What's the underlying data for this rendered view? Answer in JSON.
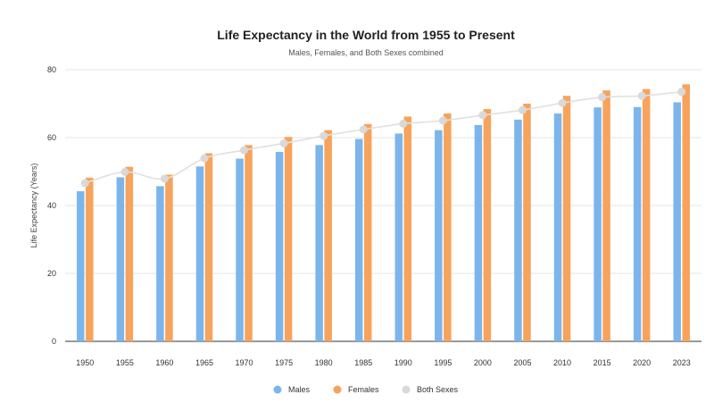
{
  "colors": {
    "males": "#7cb5ec",
    "females": "#f7a35c",
    "both": "#d9d9d9",
    "both_line": "#e0e0e0",
    "axis": "#333333",
    "grid": "#e6e6e6"
  },
  "chart_data": {
    "type": "bar",
    "title": "Life Expectancy in the World from 1955 to Present",
    "subtitle": "Males, Females, and Both Sexes combined",
    "xlabel": "",
    "ylabel": "Life Expectancy (Years)",
    "ylim": [
      0,
      80
    ],
    "yticks": [
      0,
      20,
      40,
      60,
      80
    ],
    "grid": true,
    "legend_position": "bottom",
    "categories": [
      "1950",
      "1955",
      "1960",
      "1965",
      "1970",
      "1975",
      "1980",
      "1985",
      "1990",
      "1995",
      "2000",
      "2005",
      "2010",
      "2015",
      "2020",
      "2023"
    ],
    "series": [
      {
        "name": "Males",
        "type": "bar",
        "values": [
          44.2,
          48.3,
          45.7,
          51.5,
          53.8,
          55.8,
          57.8,
          59.6,
          61.2,
          62.2,
          63.7,
          65.3,
          67.1,
          68.9,
          69.0,
          70.4
        ]
      },
      {
        "name": "Females",
        "type": "bar",
        "values": [
          48.2,
          51.4,
          49.1,
          55.4,
          57.8,
          60.2,
          62.2,
          64.0,
          66.2,
          67.1,
          68.4,
          70.0,
          72.3,
          73.9,
          74.3,
          75.7
        ]
      },
      {
        "name": "Both Sexes",
        "type": "line",
        "values": [
          46.6,
          49.9,
          47.9,
          53.9,
          56.3,
          58.3,
          60.5,
          62.4,
          64.1,
          65.0,
          66.6,
          68.1,
          70.2,
          71.9,
          72.3,
          73.5
        ]
      }
    ]
  }
}
